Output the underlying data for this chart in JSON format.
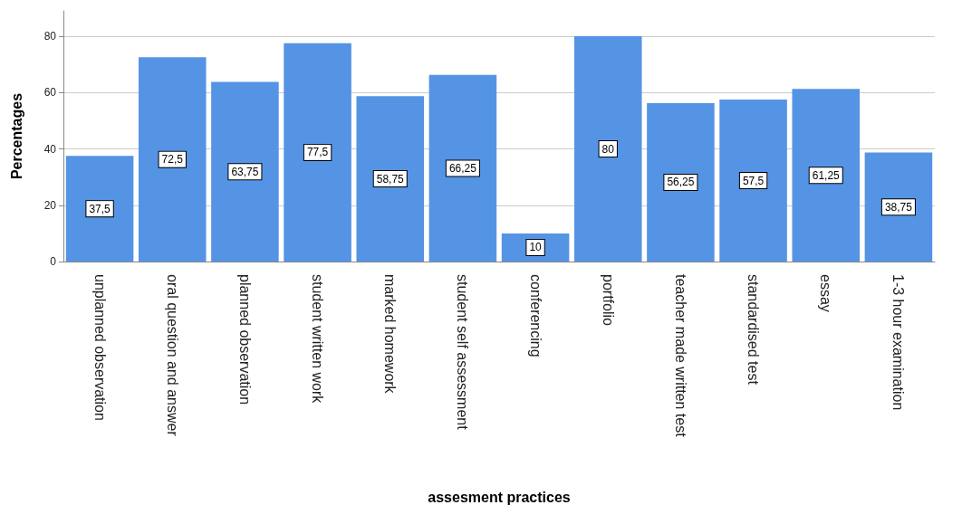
{
  "chart_data": {
    "type": "bar",
    "xlabel": "assesment practices",
    "ylabel": "Percentages",
    "categories": [
      "unplanned observation",
      "oral question and answer",
      "planned observation",
      "student written work",
      "marked homework",
      "student self assessment",
      "conferencing",
      "portfolio",
      "teacher made written test",
      "standardised test",
      "essay",
      "1-3 hour examination"
    ],
    "values": [
      37.5,
      72.5,
      63.75,
      77.5,
      58.75,
      66.25,
      10,
      80,
      56.25,
      57.5,
      61.25,
      38.75
    ],
    "value_labels": [
      "37,5",
      "72,5",
      "63,75",
      "77,5",
      "58,75",
      "66,25",
      "10",
      "80",
      "56,25",
      "57,5",
      "61,25",
      "38,75"
    ],
    "color": "#5594e4",
    "ylim": [
      0,
      89
    ],
    "yticks": [
      0,
      20,
      40,
      60,
      80
    ],
    "grid": "y"
  }
}
